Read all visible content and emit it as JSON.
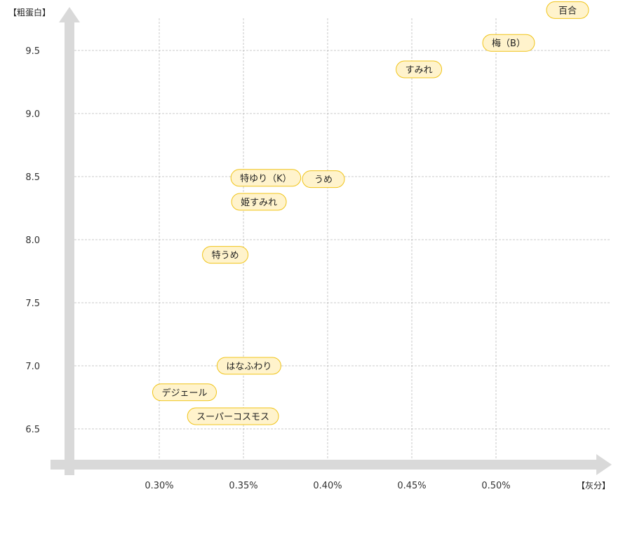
{
  "chart_data": {
    "type": "scatter",
    "xlabel": "【灰分】",
    "ylabel": "【粗蛋白】",
    "xlim": [
      0.25,
      0.55
    ],
    "ylim": [
      6.3,
      9.8
    ],
    "xticks": [
      0.3,
      0.35,
      0.4,
      0.45,
      0.5
    ],
    "xtick_labels": [
      "0.30%",
      "0.35%",
      "0.40%",
      "0.45%",
      "0.50%"
    ],
    "yticks": [
      6.5,
      7.0,
      7.5,
      8.0,
      8.5,
      9.0,
      9.5
    ],
    "ytick_labels": [
      "6.5",
      "7.0",
      "7.5",
      "8.0",
      "8.5",
      "9.0",
      "9.5"
    ],
    "grid": true,
    "points": [
      {
        "label": "百合",
        "x": 0.5425,
        "y": 9.82
      },
      {
        "label": "梅（B）",
        "x": 0.5075,
        "y": 9.56
      },
      {
        "label": "すみれ",
        "x": 0.4542,
        "y": 9.35
      },
      {
        "label": "特ゆり（K）",
        "x": 0.3633,
        "y": 8.49
      },
      {
        "label": "うめ",
        "x": 0.3975,
        "y": 8.48
      },
      {
        "label": "姫すみれ",
        "x": 0.3592,
        "y": 8.3
      },
      {
        "label": "特うめ",
        "x": 0.3392,
        "y": 7.88
      },
      {
        "label": "はなふわり",
        "x": 0.3533,
        "y": 7.0
      },
      {
        "label": "デジェール",
        "x": 0.315,
        "y": 6.79
      },
      {
        "label": "スーパーコスモス",
        "x": 0.3438,
        "y": 6.6
      }
    ],
    "colors": {
      "pill_fill": "#fff3cc",
      "pill_stroke": "#f0c419",
      "axis_arrow": "#d9d9d9",
      "grid": "#bbbbbb"
    }
  }
}
